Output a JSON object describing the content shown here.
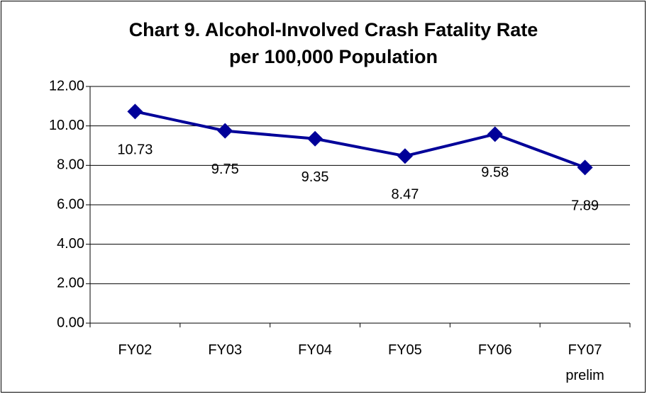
{
  "chart_data": {
    "type": "line",
    "title": "Chart 9. Alcohol-Involved Crash Fatality Rate\nper 100,000 Population",
    "categories": [
      "FY02",
      "FY03",
      "FY04",
      "FY05",
      "FY06",
      "FY07\nprelim"
    ],
    "series": [
      {
        "color": "#000099",
        "values": [
          10.73,
          9.75,
          9.35,
          8.47,
          9.58,
          7.89
        ]
      }
    ],
    "ylim": [
      0,
      12
    ],
    "yticks": [
      {
        "value": 0,
        "label": "0.00"
      },
      {
        "value": 2,
        "label": "2.00"
      },
      {
        "value": 4,
        "label": "4.00"
      },
      {
        "value": 6,
        "label": "6.00"
      },
      {
        "value": 8,
        "label": "8.00"
      },
      {
        "value": 10,
        "label": "10.00"
      },
      {
        "value": 12,
        "label": "12.00"
      }
    ],
    "grid": true
  }
}
